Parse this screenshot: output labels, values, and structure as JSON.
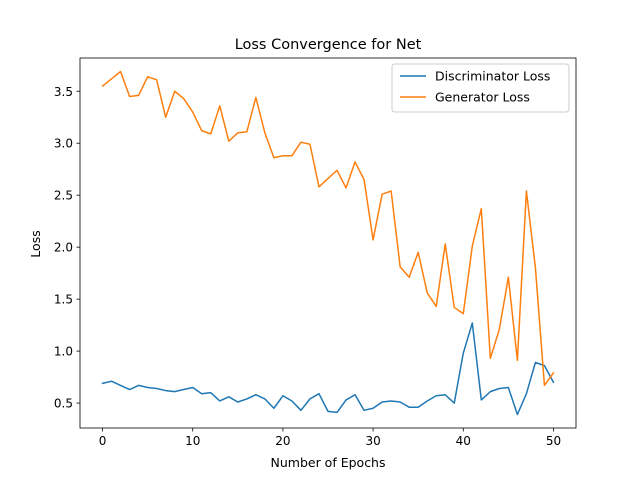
{
  "chart_data": {
    "type": "line",
    "title": "Loss Convergence for Net",
    "xlabel": "Number of Epochs",
    "ylabel": "Loss",
    "xlim": [
      -2.5,
      52.5
    ],
    "ylim": [
      0.26,
      3.82
    ],
    "xticks": [
      0,
      10,
      20,
      30,
      40,
      50
    ],
    "yticks": [
      0.5,
      1.0,
      1.5,
      2.0,
      2.5,
      3.0,
      3.5
    ],
    "grid": false,
    "legend_position": "top-right",
    "x": [
      0,
      1,
      2,
      3,
      4,
      5,
      6,
      7,
      8,
      9,
      10,
      11,
      12,
      13,
      14,
      15,
      16,
      17,
      18,
      19,
      20,
      21,
      22,
      23,
      24,
      25,
      26,
      27,
      28,
      29,
      30,
      31,
      32,
      33,
      34,
      35,
      36,
      37,
      38,
      39,
      40,
      41,
      42,
      43,
      44,
      45,
      46,
      47,
      48,
      49,
      50
    ],
    "series": [
      {
        "name": "Discriminator Loss",
        "color": "#1f77b4",
        "values": [
          0.69,
          0.71,
          0.67,
          0.63,
          0.67,
          0.65,
          0.64,
          0.62,
          0.61,
          0.63,
          0.65,
          0.59,
          0.6,
          0.52,
          0.56,
          0.51,
          0.54,
          0.58,
          0.54,
          0.45,
          0.57,
          0.52,
          0.43,
          0.54,
          0.59,
          0.42,
          0.41,
          0.53,
          0.58,
          0.43,
          0.45,
          0.51,
          0.52,
          0.51,
          0.46,
          0.46,
          0.52,
          0.57,
          0.58,
          0.5,
          0.98,
          1.27,
          0.53,
          0.61,
          0.64,
          0.65,
          0.39,
          0.59,
          0.89,
          0.86,
          0.7
        ]
      },
      {
        "name": "Generator Loss",
        "color": "#ff7f0e",
        "values": [
          3.55,
          3.62,
          3.69,
          3.45,
          3.46,
          3.64,
          3.61,
          3.25,
          3.5,
          3.43,
          3.3,
          3.12,
          3.09,
          3.36,
          3.02,
          3.1,
          3.11,
          3.44,
          3.1,
          2.86,
          2.88,
          2.88,
          3.01,
          2.99,
          2.58,
          2.66,
          2.74,
          2.57,
          2.82,
          2.65,
          2.07,
          2.51,
          2.54,
          1.81,
          1.71,
          1.95,
          1.56,
          1.43,
          2.03,
          1.42,
          1.36,
          2.01,
          2.37,
          0.93,
          1.21,
          1.71,
          0.91,
          2.54,
          1.8,
          0.67,
          0.79
        ]
      }
    ]
  }
}
